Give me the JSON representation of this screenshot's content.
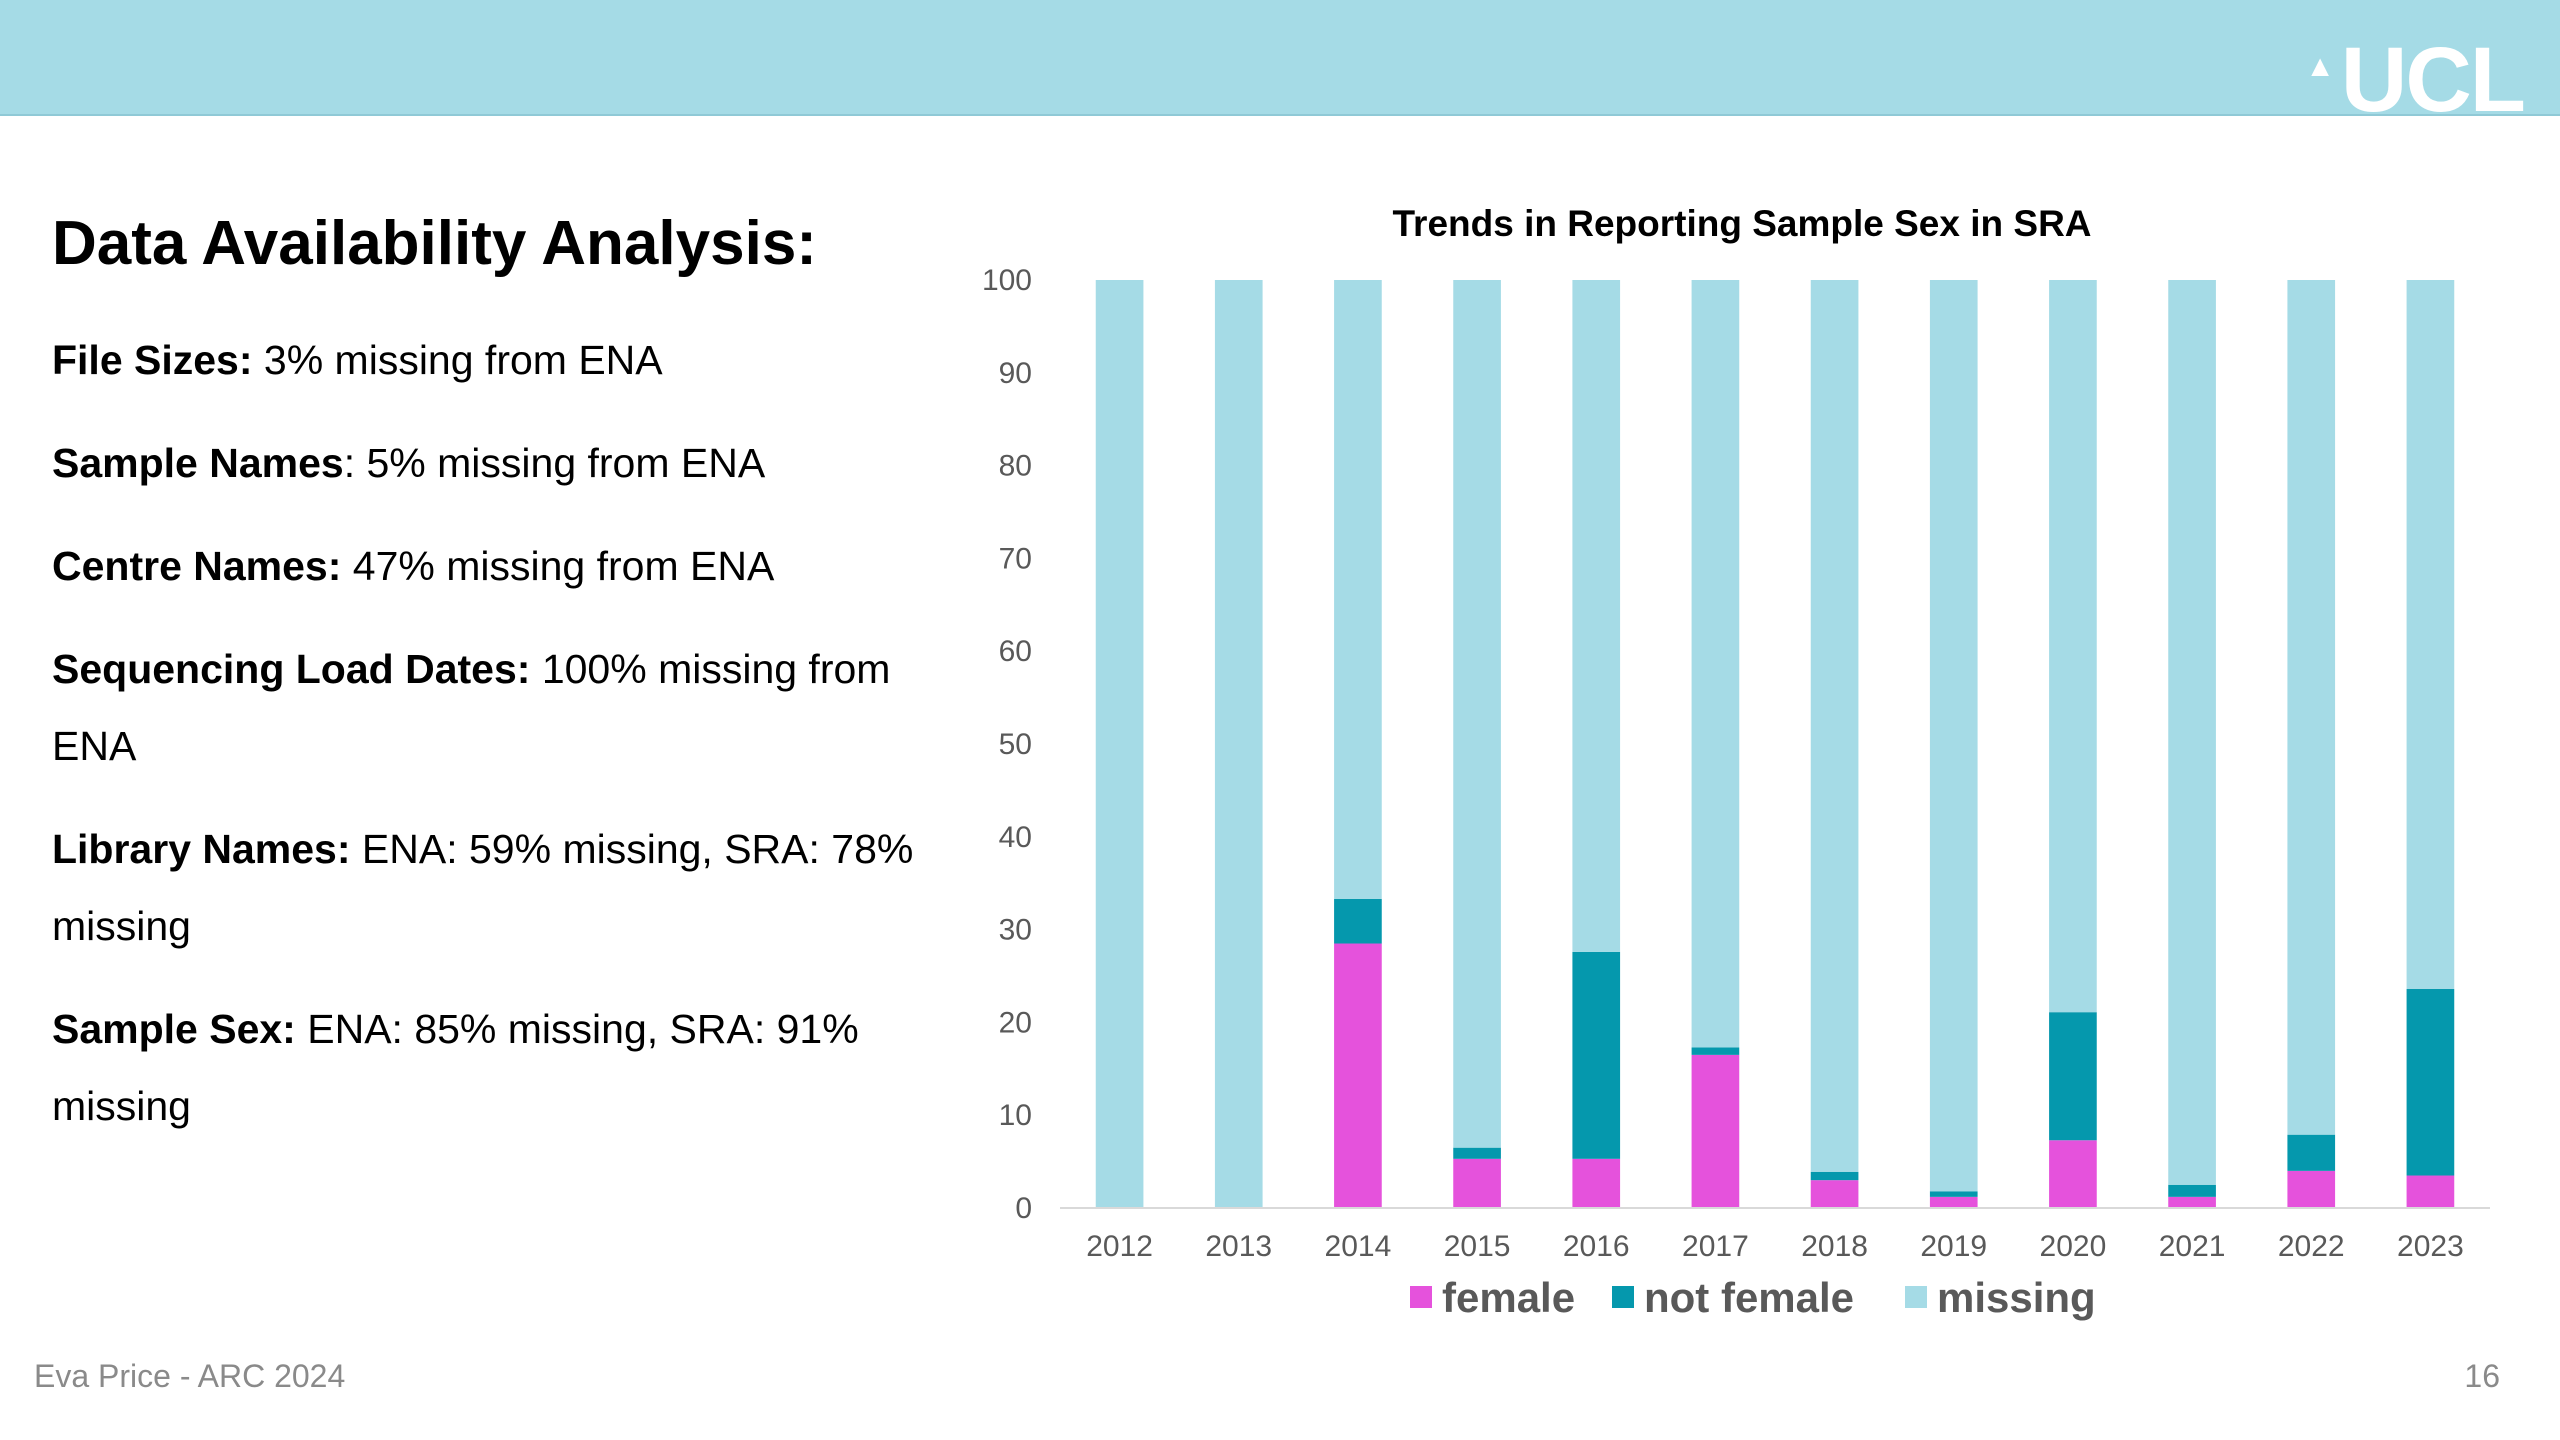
{
  "header": {
    "logo_mark": "▲",
    "logo_text": "UCL"
  },
  "slide": {
    "heading": "Data Availability Analysis:",
    "items": [
      {
        "label": "File Sizes:",
        "text": " 3% missing from ENA"
      },
      {
        "label": "Sample Names",
        "text": ": 5% missing from ENA"
      },
      {
        "label": "Centre Names:",
        "text": " 47% missing from ENA"
      },
      {
        "label": "Sequencing Load Dates:",
        "text": " 100% missing from ENA"
      },
      {
        "label": "Library Names:",
        "text": " ENA: 59% missing, SRA: 78% missing"
      },
      {
        "label": "Sample Sex:",
        "text": " ENA: 85% missing, SRA: 91% missing"
      }
    ]
  },
  "footer": {
    "author": "Eva Price - ARC 2024",
    "page_number": "16"
  },
  "colors": {
    "header": "#a5dbe6",
    "female": "#e552dc",
    "not_female": "#0598ad",
    "missing": "#a5dbe6"
  },
  "chart_data": {
    "type": "bar",
    "stacked": true,
    "title": "Trends in Reporting Sample Sex in SRA",
    "categories": [
      "2012",
      "2013",
      "2014",
      "2015",
      "2016",
      "2017",
      "2018",
      "2019",
      "2020",
      "2021",
      "2022",
      "2023"
    ],
    "series": [
      {
        "name": "female",
        "color": "#e552dc",
        "values": [
          0,
          0,
          28.5,
          5.3,
          5.3,
          16.5,
          3,
          1.2,
          7.3,
          1.2,
          4,
          3.5
        ]
      },
      {
        "name": "not female",
        "color": "#0598ad",
        "values": [
          0,
          0,
          4.8,
          1.2,
          22.3,
          0.8,
          0.9,
          0.6,
          13.8,
          1.3,
          3.9,
          20.1
        ]
      },
      {
        "name": "missing",
        "color": "#a5dbe6",
        "values": [
          100,
          100,
          66.7,
          93.5,
          72.4,
          82.7,
          96.1,
          98.2,
          78.9,
          97.5,
          92.1,
          76.4
        ]
      }
    ],
    "ylim": [
      0,
      100
    ],
    "yticks": [
      0,
      10,
      20,
      30,
      40,
      50,
      60,
      70,
      80,
      90,
      100
    ],
    "xlabel": "",
    "ylabel": "",
    "grid": false,
    "legend": "bottom"
  }
}
